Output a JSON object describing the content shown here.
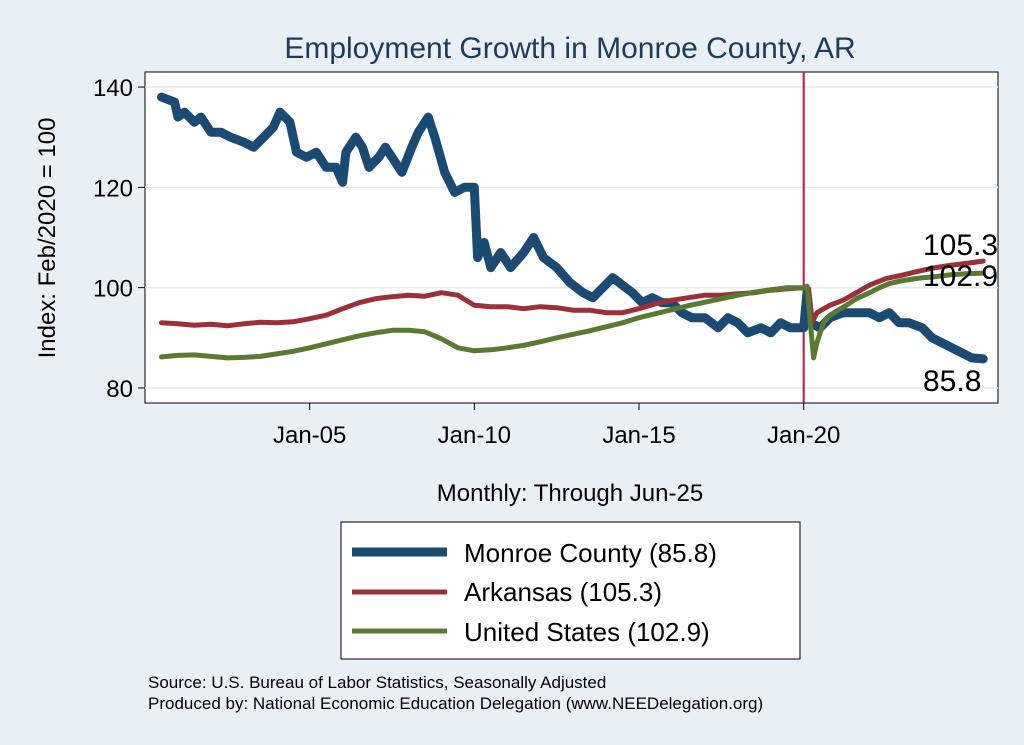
{
  "chart_data": {
    "type": "line",
    "title": "Employment Growth in Monroe  County, AR",
    "ylabel": "Index: Feb/2020 = 100",
    "xlabel": "Monthly: Through Jun-25",
    "xlim": [
      2000.0,
      2025.9
    ],
    "ylim": [
      77,
      143
    ],
    "yticks": [
      80,
      100,
      120,
      140
    ],
    "xticks": [
      {
        "label": "Jan-05",
        "value": 2005
      },
      {
        "label": "Jan-10",
        "value": 2010
      },
      {
        "label": "Jan-15",
        "value": 2015
      },
      {
        "label": "Jan-20",
        "value": 2020
      }
    ],
    "reference_line": {
      "x": 2020.0,
      "color": "#c0143c"
    },
    "series": [
      {
        "name": "Monroe  County",
        "legend_label": "Monroe  County (85.8)",
        "end_label": "85.8",
        "color": "#1b4a73",
        "points": [
          [
            2000.5,
            138
          ],
          [
            2000.9,
            137
          ],
          [
            2001.0,
            134
          ],
          [
            2001.2,
            135
          ],
          [
            2001.5,
            133
          ],
          [
            2001.7,
            134
          ],
          [
            2002.0,
            131
          ],
          [
            2002.3,
            131
          ],
          [
            2002.6,
            130
          ],
          [
            2003.0,
            129
          ],
          [
            2003.3,
            128
          ],
          [
            2003.6,
            130
          ],
          [
            2003.9,
            132
          ],
          [
            2004.1,
            135
          ],
          [
            2004.4,
            133
          ],
          [
            2004.6,
            127
          ],
          [
            2004.9,
            126
          ],
          [
            2005.2,
            127
          ],
          [
            2005.5,
            124
          ],
          [
            2005.8,
            124
          ],
          [
            2006.0,
            121
          ],
          [
            2006.1,
            127
          ],
          [
            2006.4,
            130
          ],
          [
            2006.6,
            128
          ],
          [
            2006.8,
            124
          ],
          [
            2007.1,
            126
          ],
          [
            2007.3,
            128
          ],
          [
            2007.6,
            125
          ],
          [
            2007.8,
            123
          ],
          [
            2008.1,
            128
          ],
          [
            2008.3,
            131
          ],
          [
            2008.6,
            134
          ],
          [
            2008.8,
            130
          ],
          [
            2009.1,
            123
          ],
          [
            2009.4,
            119
          ],
          [
            2009.7,
            120
          ],
          [
            2010.0,
            120
          ],
          [
            2010.1,
            106
          ],
          [
            2010.3,
            109
          ],
          [
            2010.5,
            104
          ],
          [
            2010.8,
            107
          ],
          [
            2011.1,
            104
          ],
          [
            2011.5,
            107
          ],
          [
            2011.8,
            110
          ],
          [
            2012.1,
            106
          ],
          [
            2012.5,
            104
          ],
          [
            2012.9,
            101
          ],
          [
            2013.3,
            99
          ],
          [
            2013.6,
            98
          ],
          [
            2013.9,
            100
          ],
          [
            2014.2,
            102
          ],
          [
            2014.6,
            100
          ],
          [
            2014.8,
            99
          ],
          [
            2015.1,
            97
          ],
          [
            2015.4,
            98
          ],
          [
            2015.7,
            97
          ],
          [
            2016.0,
            97
          ],
          [
            2016.3,
            95
          ],
          [
            2016.6,
            94
          ],
          [
            2017.0,
            94
          ],
          [
            2017.4,
            92
          ],
          [
            2017.7,
            94
          ],
          [
            2018.0,
            93
          ],
          [
            2018.3,
            91
          ],
          [
            2018.7,
            92
          ],
          [
            2019.0,
            91
          ],
          [
            2019.3,
            93
          ],
          [
            2019.6,
            92
          ],
          [
            2020.0,
            92
          ],
          [
            2020.1,
            99
          ],
          [
            2020.2,
            93
          ],
          [
            2020.5,
            92
          ],
          [
            2020.8,
            94
          ],
          [
            2021.2,
            95
          ],
          [
            2021.6,
            95
          ],
          [
            2022.0,
            95
          ],
          [
            2022.3,
            94
          ],
          [
            2022.6,
            95
          ],
          [
            2022.9,
            93
          ],
          [
            2023.2,
            93
          ],
          [
            2023.6,
            92
          ],
          [
            2023.9,
            90
          ],
          [
            2024.2,
            89
          ],
          [
            2024.5,
            88
          ],
          [
            2024.8,
            87
          ],
          [
            2025.1,
            86
          ],
          [
            2025.45,
            85.8
          ]
        ]
      },
      {
        "name": "Arkansas",
        "legend_label": "Arkansas (105.3)",
        "end_label": "105.3",
        "color": "#9c2f3a",
        "points": [
          [
            2000.5,
            93
          ],
          [
            2001,
            92.8
          ],
          [
            2001.5,
            92.5
          ],
          [
            2002,
            92.7
          ],
          [
            2002.5,
            92.4
          ],
          [
            2003,
            92.8
          ],
          [
            2003.5,
            93.1
          ],
          [
            2004,
            93
          ],
          [
            2004.5,
            93.2
          ],
          [
            2005,
            93.8
          ],
          [
            2005.5,
            94.5
          ],
          [
            2006,
            95.8
          ],
          [
            2006.5,
            97
          ],
          [
            2007,
            97.8
          ],
          [
            2007.5,
            98.2
          ],
          [
            2008,
            98.5
          ],
          [
            2008.5,
            98.3
          ],
          [
            2009,
            99
          ],
          [
            2009.5,
            98.5
          ],
          [
            2010,
            96.5
          ],
          [
            2010.5,
            96.2
          ],
          [
            2011,
            96.2
          ],
          [
            2011.5,
            95.8
          ],
          [
            2012,
            96.2
          ],
          [
            2012.5,
            96
          ],
          [
            2013,
            95.5
          ],
          [
            2013.5,
            95.5
          ],
          [
            2014,
            95
          ],
          [
            2014.5,
            95
          ],
          [
            2015,
            95.8
          ],
          [
            2015.5,
            96.8
          ],
          [
            2016,
            97.5
          ],
          [
            2016.5,
            98
          ],
          [
            2017,
            98.5
          ],
          [
            2017.5,
            98.5
          ],
          [
            2018,
            98.8
          ],
          [
            2018.5,
            99
          ],
          [
            2019,
            99.5
          ],
          [
            2019.5,
            99.8
          ],
          [
            2020,
            100
          ],
          [
            2020.15,
            99.8
          ],
          [
            2020.25,
            93
          ],
          [
            2020.4,
            95
          ],
          [
            2020.8,
            96.5
          ],
          [
            2021.2,
            97.5
          ],
          [
            2021.6,
            99
          ],
          [
            2022,
            100.5
          ],
          [
            2022.5,
            101.8
          ],
          [
            2023,
            102.5
          ],
          [
            2023.5,
            103.3
          ],
          [
            2024,
            104
          ],
          [
            2024.5,
            104.5
          ],
          [
            2025,
            104.9
          ],
          [
            2025.45,
            105.3
          ]
        ]
      },
      {
        "name": "United States",
        "legend_label": "United States (102.9)",
        "end_label": "102.9",
        "color": "#5a7a30",
        "points": [
          [
            2000.5,
            86.2
          ],
          [
            2001,
            86.5
          ],
          [
            2001.5,
            86.6
          ],
          [
            2002,
            86.3
          ],
          [
            2002.5,
            86
          ],
          [
            2003,
            86.1
          ],
          [
            2003.5,
            86.3
          ],
          [
            2004,
            86.8
          ],
          [
            2004.5,
            87.3
          ],
          [
            2005,
            88
          ],
          [
            2005.5,
            88.8
          ],
          [
            2006,
            89.6
          ],
          [
            2006.5,
            90.4
          ],
          [
            2007,
            91
          ],
          [
            2007.5,
            91.5
          ],
          [
            2008,
            91.5
          ],
          [
            2008.5,
            91.2
          ],
          [
            2009,
            89.8
          ],
          [
            2009.5,
            88
          ],
          [
            2010,
            87.4
          ],
          [
            2010.5,
            87.6
          ],
          [
            2011,
            88
          ],
          [
            2011.5,
            88.5
          ],
          [
            2012,
            89.2
          ],
          [
            2012.5,
            90
          ],
          [
            2013,
            90.7
          ],
          [
            2013.5,
            91.4
          ],
          [
            2014,
            92.2
          ],
          [
            2014.5,
            93
          ],
          [
            2015,
            94
          ],
          [
            2015.5,
            94.8
          ],
          [
            2016,
            95.6
          ],
          [
            2016.5,
            96.4
          ],
          [
            2017,
            97.1
          ],
          [
            2017.5,
            97.8
          ],
          [
            2018,
            98.5
          ],
          [
            2018.5,
            99.1
          ],
          [
            2019,
            99.6
          ],
          [
            2019.5,
            100
          ],
          [
            2020,
            100
          ],
          [
            2020.1,
            100.3
          ],
          [
            2020.2,
            93
          ],
          [
            2020.3,
            86
          ],
          [
            2020.4,
            89
          ],
          [
            2020.6,
            93
          ],
          [
            2020.8,
            94.5
          ],
          [
            2021,
            95.3
          ],
          [
            2021.3,
            96.5
          ],
          [
            2021.6,
            97.8
          ],
          [
            2022,
            99
          ],
          [
            2022.3,
            100
          ],
          [
            2022.6,
            100.8
          ],
          [
            2023,
            101.4
          ],
          [
            2023.5,
            101.9
          ],
          [
            2024,
            102.2
          ],
          [
            2024.5,
            102.6
          ],
          [
            2025,
            102.8
          ],
          [
            2025.45,
            102.9
          ]
        ]
      }
    ],
    "source_lines": [
      "Source: U.S. Bureau of Labor Statistics, Seasonally Adjusted",
      "Produced by: National Economic Education Delegation (www.NEEDelegation.org)"
    ]
  }
}
